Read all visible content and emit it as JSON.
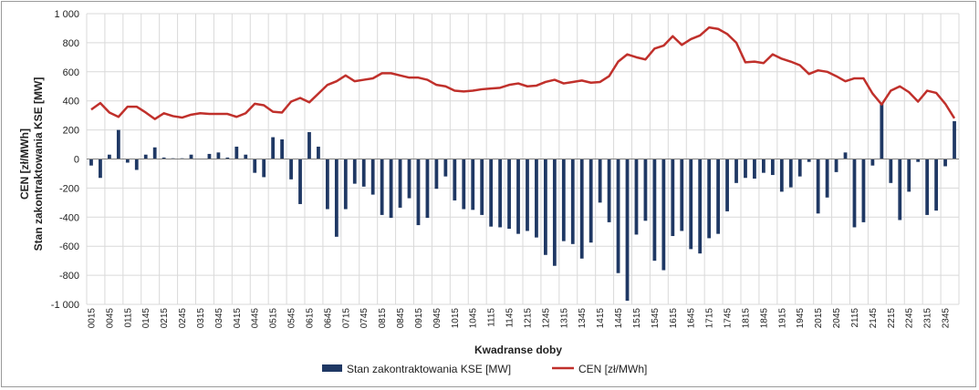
{
  "chart_data": {
    "type": "bar+line",
    "xlabel": "Kwadranse doby",
    "ylabel_lines": [
      "CEN [zł/MWh]",
      "Stan zakontraktowania KSE [MW]"
    ],
    "ylim": [
      -1000,
      1000
    ],
    "yticks": [
      -1000,
      -800,
      -600,
      -400,
      -200,
      0,
      200,
      400,
      600,
      800,
      1000
    ],
    "ytick_labels": [
      "-1 000",
      "-800",
      "-600",
      "-400",
      "-200",
      "0",
      "200",
      "400",
      "600",
      "800",
      "1 000"
    ],
    "grid": true,
    "legend_position": "bottom",
    "x": [
      "0015",
      "0030",
      "0045",
      "0100",
      "0115",
      "0130",
      "0145",
      "0200",
      "0215",
      "0230",
      "0245",
      "0300",
      "0315",
      "0330",
      "0345",
      "0400",
      "0415",
      "0430",
      "0445",
      "0500",
      "0515",
      "0530",
      "0545",
      "0600",
      "0615",
      "0630",
      "0645",
      "0700",
      "0715",
      "0730",
      "0745",
      "0800",
      "0815",
      "0830",
      "0845",
      "0900",
      "0915",
      "0930",
      "0945",
      "1000",
      "1015",
      "1030",
      "1045",
      "1100",
      "1115",
      "1130",
      "1145",
      "1200",
      "1215",
      "1230",
      "1245",
      "1300",
      "1315",
      "1330",
      "1345",
      "1400",
      "1415",
      "1430",
      "1445",
      "1500",
      "1515",
      "1530",
      "1545",
      "1600",
      "1615",
      "1630",
      "1645",
      "1700",
      "1715",
      "1730",
      "1745",
      "1800",
      "1815",
      "1830",
      "1845",
      "1900",
      "1915",
      "1930",
      "1945",
      "2000",
      "2015",
      "2030",
      "2045",
      "2100",
      "2115",
      "2130",
      "2145",
      "2200",
      "2215",
      "2230",
      "2245",
      "2300",
      "2315",
      "2330",
      "2345",
      "2400"
    ],
    "xtick_labels": [
      "0015",
      "0045",
      "0115",
      "0145",
      "0215",
      "0245",
      "0315",
      "0345",
      "0415",
      "0445",
      "0515",
      "0545",
      "0615",
      "0645",
      "0715",
      "0745",
      "0815",
      "0845",
      "0915",
      "0945",
      "1015",
      "1045",
      "1115",
      "1145",
      "1215",
      "1245",
      "1315",
      "1345",
      "1415",
      "1445",
      "1515",
      "1545",
      "1615",
      "1645",
      "1715",
      "1745",
      "1815",
      "1845",
      "1915",
      "1945",
      "2015",
      "2045",
      "2115",
      "2145",
      "2215",
      "2245",
      "2315",
      "2345"
    ],
    "series": [
      {
        "name": "Stan zakontraktowania KSE [MW]",
        "kind": "bar",
        "color": "#1f3864",
        "values": [
          -45,
          -130,
          30,
          200,
          -25,
          -75,
          30,
          80,
          10,
          5,
          5,
          30,
          0,
          35,
          45,
          10,
          85,
          30,
          -95,
          -125,
          150,
          135,
          -140,
          -310,
          185,
          85,
          -345,
          -535,
          -345,
          -170,
          -190,
          -245,
          -385,
          -405,
          -335,
          -270,
          -455,
          -405,
          -205,
          -120,
          -285,
          -345,
          -350,
          -385,
          -465,
          -470,
          -480,
          -515,
          -495,
          -540,
          -660,
          -735,
          -565,
          -585,
          -685,
          -575,
          -300,
          -435,
          -785,
          -975,
          -520,
          -425,
          -700,
          -765,
          -530,
          -495,
          -620,
          -650,
          -545,
          -515,
          -360,
          -165,
          -130,
          -135,
          -95,
          -110,
          -225,
          -195,
          -120,
          -20,
          -375,
          -265,
          -90,
          45,
          -470,
          -435,
          -45,
          380,
          -165,
          -420,
          -225,
          -20,
          -385,
          -355,
          -50,
          260
        ]
      },
      {
        "name": "CEN [zł/MWh]",
        "kind": "line",
        "color": "#c0302b",
        "values": [
          340,
          385,
          320,
          290,
          360,
          360,
          320,
          275,
          315,
          295,
          285,
          305,
          315,
          310,
          310,
          310,
          290,
          315,
          380,
          370,
          325,
          320,
          395,
          420,
          390,
          450,
          510,
          535,
          575,
          535,
          545,
          555,
          590,
          590,
          575,
          560,
          560,
          545,
          510,
          500,
          470,
          465,
          470,
          480,
          485,
          490,
          510,
          520,
          500,
          505,
          530,
          545,
          520,
          530,
          540,
          525,
          530,
          570,
          670,
          720,
          700,
          685,
          760,
          780,
          845,
          785,
          825,
          850,
          905,
          895,
          860,
          800,
          665,
          670,
          660,
          720,
          690,
          670,
          645,
          585,
          610,
          600,
          570,
          535,
          555,
          555,
          450,
          375,
          470,
          500,
          460,
          395,
          470,
          455,
          380,
          280
        ]
      }
    ]
  }
}
